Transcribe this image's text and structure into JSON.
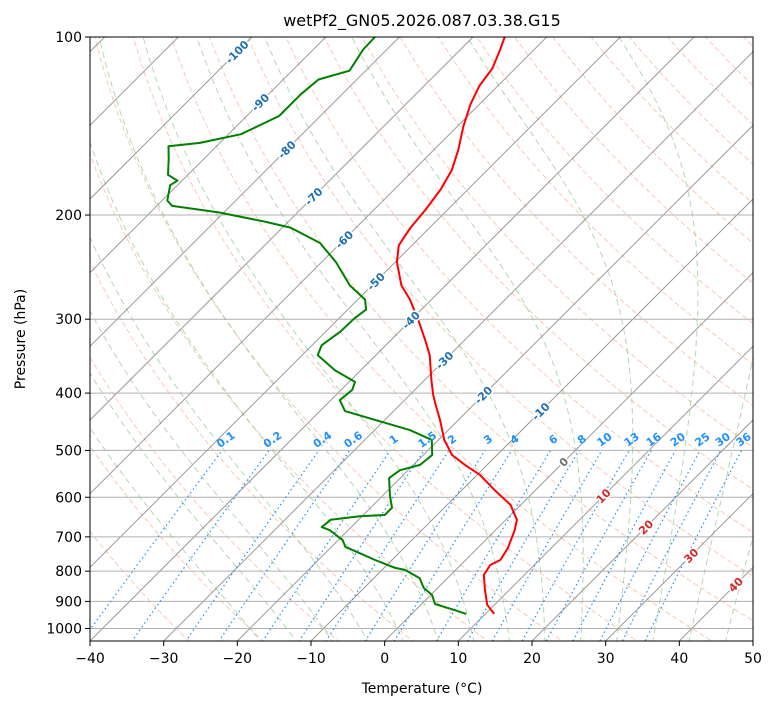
{
  "chart_data": {
    "type": "line",
    "subtype": "skew-t log-p",
    "title": "wetPf2_GN05.2026.087.03.38.G15",
    "xlabel": "Temperature (°C)",
    "ylabel": "Pressure (hPa)",
    "xlim": [
      -40,
      50
    ],
    "ylim": [
      1050,
      100
    ],
    "x_ticks": [
      "−40",
      "−30",
      "−20",
      "−10",
      "0",
      "10",
      "20",
      "30",
      "40",
      "50"
    ],
    "x_tick_values": [
      -40,
      -30,
      -20,
      -10,
      0,
      10,
      20,
      30,
      40,
      50
    ],
    "y_ticks": [
      "100",
      "200",
      "300",
      "400",
      "500",
      "600",
      "700",
      "800",
      "900",
      "1000"
    ],
    "y_tick_values": [
      100,
      200,
      300,
      400,
      500,
      600,
      700,
      800,
      900,
      1000
    ],
    "grid": true,
    "colors": {
      "temperature": "#ff0000",
      "dewpoint": "#008000",
      "isotherm": "#808080",
      "dry_adiabat": "#f4a582",
      "moist_adiabat": "#8fc98f",
      "mixing_ratio": "#1e90ff",
      "iso_label_cold": "#1f6fb4",
      "iso_label_zero": "#707070",
      "iso_label_warm": "#d62728"
    },
    "series": [
      {
        "name": "Temperature",
        "points_p_T": [
          [
            945,
            11.2
          ],
          [
            912,
            9.0
          ],
          [
            861,
            6.7
          ],
          [
            812,
            4.5
          ],
          [
            781,
            4.0
          ],
          [
            766,
            4.7
          ],
          [
            731,
            4.1
          ],
          [
            682,
            2.6
          ],
          [
            655,
            1.5
          ],
          [
            618,
            -1.4
          ],
          [
            584,
            -5.5
          ],
          [
            550,
            -9.6
          ],
          [
            529,
            -13.0
          ],
          [
            509,
            -16.1
          ],
          [
            480,
            -19.2
          ],
          [
            444,
            -22.5
          ],
          [
            419,
            -25.1
          ],
          [
            403,
            -26.8
          ],
          [
            380,
            -29.1
          ],
          [
            345,
            -32.7
          ],
          [
            325,
            -35.4
          ],
          [
            301,
            -39.0
          ],
          [
            278,
            -42.9
          ],
          [
            263,
            -46.0
          ],
          [
            240,
            -49.8
          ],
          [
            225,
            -51.8
          ],
          [
            210,
            -52.6
          ],
          [
            196,
            -53.0
          ],
          [
            181,
            -53.7
          ],
          [
            168,
            -54.8
          ],
          [
            155,
            -56.7
          ],
          [
            142,
            -59.1
          ],
          [
            130,
            -61.2
          ],
          [
            121,
            -62.5
          ],
          [
            113,
            -63.1
          ],
          [
            105,
            -64.6
          ],
          [
            100,
            -65.7
          ]
        ]
      },
      {
        "name": "Dewpoint",
        "points_p_T": [
          [
            945,
            7.4
          ],
          [
            931,
            5.3
          ],
          [
            909,
            1.8
          ],
          [
            878,
            0.2
          ],
          [
            854,
            -1.9
          ],
          [
            822,
            -3.8
          ],
          [
            796,
            -6.9
          ],
          [
            790,
            -8.5
          ],
          [
            766,
            -12.3
          ],
          [
            746,
            -15.3
          ],
          [
            728,
            -18.1
          ],
          [
            709,
            -19.4
          ],
          [
            682,
            -22.5
          ],
          [
            674,
            -24.0
          ],
          [
            655,
            -23.8
          ],
          [
            646,
            -20.3
          ],
          [
            643,
            -17.1
          ],
          [
            625,
            -17.1
          ],
          [
            595,
            -19.1
          ],
          [
            557,
            -21.5
          ],
          [
            540,
            -21.1
          ],
          [
            529,
            -19.1
          ],
          [
            509,
            -18.8
          ],
          [
            480,
            -20.9
          ],
          [
            462,
            -25.2
          ],
          [
            429,
            -36.6
          ],
          [
            411,
            -38.8
          ],
          [
            395,
            -38.5
          ],
          [
            383,
            -39.2
          ],
          [
            366,
            -43.5
          ],
          [
            345,
            -47.9
          ],
          [
            332,
            -48.7
          ],
          [
            315,
            -48.0
          ],
          [
            299,
            -47.9
          ],
          [
            289,
            -47.5
          ],
          [
            278,
            -49.0
          ],
          [
            263,
            -53.0
          ],
          [
            240,
            -58.1
          ],
          [
            223,
            -62.8
          ],
          [
            210,
            -68.9
          ],
          [
            205,
            -73.4
          ],
          [
            198,
            -80.6
          ],
          [
            193,
            -87.9
          ],
          [
            189,
            -89.3
          ],
          [
            178,
            -91.0
          ],
          [
            175,
            -90.6
          ],
          [
            171,
            -92.7
          ],
          [
            161,
            -94.7
          ],
          [
            153,
            -96.5
          ],
          [
            151,
            -92.7
          ],
          [
            146,
            -88.3
          ],
          [
            136,
            -85.6
          ],
          [
            125,
            -85.6
          ],
          [
            118,
            -85.2
          ],
          [
            114,
            -82.2
          ],
          [
            105,
            -83.2
          ],
          [
            100,
            -83.3
          ]
        ]
      }
    ],
    "isotherm_labels": [
      {
        "text": "-100",
        "T": -100,
        "p": 106
      },
      {
        "text": "-90",
        "T": -90,
        "p": 129
      },
      {
        "text": "-80",
        "T": -80,
        "p": 155
      },
      {
        "text": "-70",
        "T": -70,
        "p": 186
      },
      {
        "text": "-60",
        "T": -60,
        "p": 220
      },
      {
        "text": "-50",
        "T": -50,
        "p": 259
      },
      {
        "text": "-40",
        "T": -40,
        "p": 301
      },
      {
        "text": "-30",
        "T": -30,
        "p": 352
      },
      {
        "text": "-20",
        "T": -20,
        "p": 403
      },
      {
        "text": "-10",
        "T": -10,
        "p": 466
      },
      {
        "text": "0",
        "T": 0,
        "p": 523
      },
      {
        "text": "10",
        "T": 10,
        "p": 597
      },
      {
        "text": "20",
        "T": 20,
        "p": 674
      },
      {
        "text": "30",
        "T": 30,
        "p": 753
      },
      {
        "text": "40",
        "T": 40,
        "p": 843
      }
    ],
    "mixing_ratio_labels": [
      "0.1",
      "0.2",
      "0.4",
      "0.6",
      "1",
      "1.5",
      "2",
      "3",
      "4",
      "6",
      "8",
      "10",
      "13",
      "16",
      "20",
      "25",
      "30",
      "36"
    ]
  }
}
